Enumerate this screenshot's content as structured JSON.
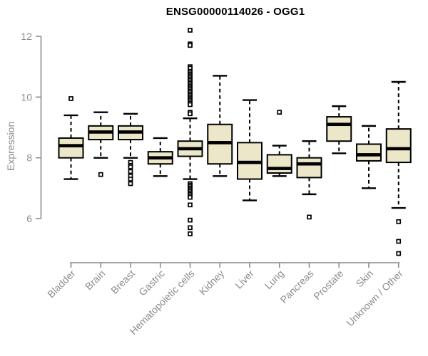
{
  "window": {
    "background_color": "#ffffff"
  },
  "chart_data": {
    "type": "boxplot",
    "title": "ENSG00000114026 - OGG1",
    "xlabel": "",
    "ylabel": "Expression",
    "ylim": [
      6,
      12
    ],
    "yticks": [
      6,
      8,
      10,
      12
    ],
    "grid": false,
    "legend": "none",
    "box_fill": "#ece7c8",
    "box_stroke": "#000000",
    "median_color": "#000000",
    "axis_color": "#8c8c8c",
    "title_color": "#000000",
    "categories": [
      "Bladder",
      "Brain",
      "Breast",
      "Gastric",
      "Hematopoietic cells",
      "Kidney",
      "Liver",
      "Lung",
      "Pancreas",
      "Prostate",
      "Skin",
      "Unknown / Other"
    ],
    "boxes": [
      {
        "category": "Bladder",
        "whisker_low": 7.3,
        "q1": 8.0,
        "median": 8.4,
        "q3": 8.65,
        "whisker_high": 9.4,
        "outliers": [
          9.95
        ]
      },
      {
        "category": "Brain",
        "whisker_low": 8.0,
        "q1": 8.6,
        "median": 8.85,
        "q3": 9.05,
        "whisker_high": 9.5,
        "outliers": [
          7.45
        ]
      },
      {
        "category": "Breast",
        "whisker_low": 8.0,
        "q1": 8.6,
        "median": 8.85,
        "q3": 9.05,
        "whisker_high": 9.45,
        "outliers": [
          7.85,
          7.75,
          7.7,
          7.55,
          7.4,
          7.3,
          7.15
        ]
      },
      {
        "category": "Gastric",
        "whisker_low": 7.4,
        "q1": 7.8,
        "median": 8.0,
        "q3": 8.2,
        "whisker_high": 8.65,
        "outliers": []
      },
      {
        "category": "Hematopoietic cells",
        "whisker_low": 7.3,
        "q1": 8.05,
        "median": 8.3,
        "q3": 8.55,
        "whisker_high": 9.3,
        "outliers": [
          12.2,
          11.75,
          11.7,
          11.0,
          10.95,
          10.85,
          10.8,
          10.75,
          10.7,
          10.65,
          10.6,
          10.55,
          10.5,
          10.45,
          10.4,
          10.35,
          10.3,
          10.25,
          10.2,
          10.15,
          10.1,
          10.05,
          10.0,
          9.95,
          9.9,
          9.85,
          9.8,
          9.75,
          9.5,
          9.45,
          7.15,
          7.1,
          7.05,
          7.0,
          6.95,
          6.9,
          6.85,
          6.8,
          6.75,
          6.7,
          6.45,
          5.95,
          5.7,
          5.5
        ]
      },
      {
        "category": "Kidney",
        "whisker_low": 7.4,
        "q1": 7.8,
        "median": 8.5,
        "q3": 9.1,
        "whisker_high": 10.7,
        "outliers": []
      },
      {
        "category": "Liver",
        "whisker_low": 6.6,
        "q1": 7.3,
        "median": 7.85,
        "q3": 8.5,
        "whisker_high": 9.9,
        "outliers": []
      },
      {
        "category": "Lung",
        "whisker_low": 7.4,
        "q1": 7.5,
        "median": 7.65,
        "q3": 8.1,
        "whisker_high": 8.4,
        "outliers": [
          9.5
        ]
      },
      {
        "category": "Pancreas",
        "whisker_low": 6.8,
        "q1": 7.35,
        "median": 7.8,
        "q3": 8.0,
        "whisker_high": 8.55,
        "outliers": [
          6.05
        ]
      },
      {
        "category": "Prostate",
        "whisker_low": 8.15,
        "q1": 8.55,
        "median": 9.1,
        "q3": 9.35,
        "whisker_high": 9.7,
        "outliers": []
      },
      {
        "category": "Skin",
        "whisker_low": 7.0,
        "q1": 7.9,
        "median": 8.1,
        "q3": 8.45,
        "whisker_high": 9.05,
        "outliers": []
      },
      {
        "category": "Unknown / Other",
        "whisker_low": 6.35,
        "q1": 7.85,
        "median": 8.3,
        "q3": 8.95,
        "whisker_high": 10.5,
        "outliers": [
          5.9,
          5.25,
          4.85
        ]
      }
    ]
  }
}
